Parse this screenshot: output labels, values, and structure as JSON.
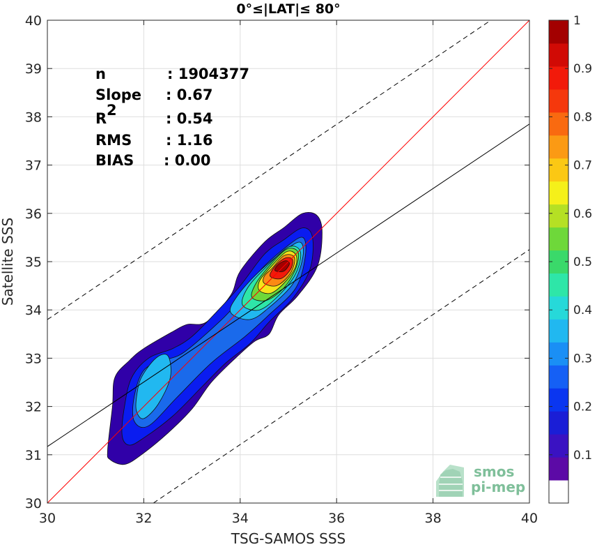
{
  "chart_data": {
    "type": "heatmap",
    "title": "0°≤|LAT|≤ 80°",
    "xlabel": "TSG-SAMOS SSS",
    "ylabel": "Satellite SSS",
    "xlim": [
      30,
      40
    ],
    "ylim": [
      30,
      40
    ],
    "xticks": [
      "30",
      "32",
      "34",
      "36",
      "38",
      "40"
    ],
    "yticks": [
      "30",
      "31",
      "32",
      "33",
      "34",
      "35",
      "36",
      "37",
      "38",
      "39",
      "40"
    ],
    "grid": true,
    "stats": [
      {
        "label": "n",
        "value": ": 1904377"
      },
      {
        "label": "Slope",
        "value": ": 0.67"
      },
      {
        "label": "R",
        "sup": "2",
        "value": ": 0.54"
      },
      {
        "label": "RMS",
        "value": ": 1.16"
      },
      {
        "label": "BIAS",
        "value": ": 0.00"
      }
    ],
    "lines": [
      {
        "name": "identity",
        "color": "#ff0000",
        "style": "solid",
        "points": [
          [
            30,
            30
          ],
          [
            40,
            40
          ]
        ]
      },
      {
        "name": "fit",
        "color": "#000000",
        "style": "solid",
        "points": [
          [
            30,
            31.17
          ],
          [
            40,
            37.85
          ]
        ]
      },
      {
        "name": "upper-bound",
        "color": "#000000",
        "style": "dashed",
        "points": [
          [
            30,
            33.8
          ],
          [
            39.2,
            40
          ]
        ]
      },
      {
        "name": "lower-bound",
        "color": "#000000",
        "style": "dashed",
        "points": [
          [
            32.2,
            30
          ],
          [
            40,
            35.25
          ]
        ]
      }
    ],
    "density_contours": [
      {
        "level": 0.05,
        "color": "#3000a8",
        "points": [
          [
            31.25,
            31.1
          ],
          [
            31.3,
            30.9
          ],
          [
            31.6,
            30.8
          ],
          [
            31.95,
            31.0
          ],
          [
            32.5,
            31.45
          ],
          [
            33.0,
            31.95
          ],
          [
            33.4,
            32.5
          ],
          [
            33.9,
            33.0
          ],
          [
            34.3,
            33.35
          ],
          [
            34.6,
            33.5
          ],
          [
            34.8,
            33.9
          ],
          [
            35.2,
            34.3
          ],
          [
            35.6,
            34.9
          ],
          [
            35.7,
            35.6
          ],
          [
            35.6,
            35.95
          ],
          [
            35.3,
            36.0
          ],
          [
            34.9,
            35.7
          ],
          [
            34.5,
            35.4
          ],
          [
            34.0,
            34.8
          ],
          [
            33.8,
            34.3
          ],
          [
            33.3,
            33.75
          ],
          [
            32.9,
            33.7
          ],
          [
            32.6,
            33.55
          ],
          [
            32.0,
            33.2
          ],
          [
            31.7,
            32.95
          ],
          [
            31.4,
            32.6
          ],
          [
            31.35,
            32.0
          ]
        ]
      },
      {
        "level": 0.15,
        "color": "#0a1cf0",
        "points": [
          [
            31.55,
            31.4
          ],
          [
            31.7,
            31.2
          ],
          [
            32.0,
            31.35
          ],
          [
            32.6,
            31.8
          ],
          [
            33.2,
            32.4
          ],
          [
            33.7,
            32.9
          ],
          [
            34.2,
            33.3
          ],
          [
            34.6,
            33.75
          ],
          [
            35.1,
            34.25
          ],
          [
            35.45,
            34.85
          ],
          [
            35.5,
            35.5
          ],
          [
            35.3,
            35.7
          ],
          [
            34.9,
            35.45
          ],
          [
            34.5,
            35.15
          ],
          [
            34.0,
            34.5
          ],
          [
            33.5,
            33.95
          ],
          [
            33.0,
            33.45
          ],
          [
            32.6,
            33.2
          ],
          [
            32.1,
            33.0
          ],
          [
            31.75,
            32.6
          ],
          [
            31.6,
            32.0
          ]
        ]
      },
      {
        "level": 0.25,
        "color": "#1a6aeb",
        "points": [
          [
            31.8,
            31.7
          ],
          [
            32.1,
            31.6
          ],
          [
            32.7,
            32.2
          ],
          [
            33.4,
            32.9
          ],
          [
            34.1,
            33.45
          ],
          [
            34.6,
            33.9
          ],
          [
            35.15,
            34.45
          ],
          [
            35.35,
            35.1
          ],
          [
            35.3,
            35.5
          ],
          [
            34.95,
            35.3
          ],
          [
            34.4,
            34.8
          ],
          [
            33.9,
            34.1
          ],
          [
            33.4,
            33.6
          ],
          [
            32.8,
            33.1
          ],
          [
            32.4,
            32.95
          ],
          [
            32.0,
            32.75
          ],
          [
            31.8,
            32.2
          ]
        ]
      },
      {
        "level": 0.35,
        "color": "#21b8f0",
        "points": [
          [
            31.85,
            31.9
          ],
          [
            32.0,
            31.75
          ],
          [
            32.3,
            32.05
          ],
          [
            32.55,
            32.6
          ],
          [
            32.5,
            33.05
          ],
          [
            32.25,
            33.0
          ],
          [
            31.95,
            32.6
          ],
          [
            31.85,
            32.2
          ]
        ]
      },
      {
        "level": 0.35,
        "color": "#21b8f0",
        "points": [
          [
            33.8,
            33.95
          ],
          [
            34.2,
            33.8
          ],
          [
            34.6,
            34.05
          ],
          [
            35.1,
            34.55
          ],
          [
            35.3,
            35.1
          ],
          [
            35.25,
            35.4
          ],
          [
            34.95,
            35.25
          ],
          [
            34.4,
            34.8
          ],
          [
            33.95,
            34.3
          ]
        ]
      },
      {
        "level": 0.45,
        "color": "#2ee6a8",
        "points": [
          [
            34.05,
            34.1
          ],
          [
            34.4,
            34.0
          ],
          [
            34.8,
            34.3
          ],
          [
            35.15,
            34.75
          ],
          [
            35.25,
            35.2
          ],
          [
            35.0,
            35.3
          ],
          [
            34.5,
            34.85
          ],
          [
            34.15,
            34.45
          ]
        ]
      },
      {
        "level": 0.55,
        "color": "#6ed83a",
        "points": [
          [
            34.25,
            34.25
          ],
          [
            34.55,
            34.2
          ],
          [
            34.9,
            34.45
          ],
          [
            35.15,
            34.85
          ],
          [
            35.2,
            35.2
          ],
          [
            34.95,
            35.25
          ],
          [
            34.55,
            34.85
          ],
          [
            34.3,
            34.5
          ]
        ]
      },
      {
        "level": 0.65,
        "color": "#f5e31a",
        "points": [
          [
            34.4,
            34.4
          ],
          [
            34.65,
            34.35
          ],
          [
            34.95,
            34.6
          ],
          [
            35.15,
            34.9
          ],
          [
            35.15,
            35.15
          ],
          [
            34.95,
            35.2
          ],
          [
            34.6,
            34.85
          ],
          [
            34.4,
            34.6
          ]
        ]
      },
      {
        "level": 0.75,
        "color": "#fb8a14",
        "points": [
          [
            34.5,
            34.55
          ],
          [
            34.75,
            34.5
          ],
          [
            35.0,
            34.7
          ],
          [
            35.12,
            34.95
          ],
          [
            35.1,
            35.12
          ],
          [
            34.9,
            35.12
          ],
          [
            34.65,
            34.85
          ],
          [
            34.5,
            34.7
          ]
        ]
      },
      {
        "level": 0.85,
        "color": "#f21a0a",
        "points": [
          [
            34.62,
            34.7
          ],
          [
            34.85,
            34.65
          ],
          [
            35.05,
            34.85
          ],
          [
            35.08,
            35.05
          ],
          [
            34.92,
            35.07
          ],
          [
            34.72,
            34.9
          ]
        ]
      },
      {
        "level": 0.95,
        "color": "#a30000",
        "points": [
          [
            34.72,
            34.82
          ],
          [
            34.9,
            34.8
          ],
          [
            35.02,
            34.95
          ],
          [
            34.95,
            35.02
          ],
          [
            34.8,
            34.95
          ]
        ]
      }
    ],
    "colorbar": {
      "range": [
        0,
        1
      ],
      "ticks": [
        "0.1",
        "0.2",
        "0.3",
        "0.4",
        "0.5",
        "0.6",
        "0.7",
        "0.8",
        "0.9",
        "1"
      ],
      "tick_values": [
        0.1,
        0.2,
        0.3,
        0.4,
        0.5,
        0.6,
        0.7,
        0.8,
        0.9,
        1.0
      ],
      "colors": [
        "#ffffff",
        "#5c0aa6",
        "#3a12c2",
        "#1a1ed6",
        "#0a36f0",
        "#1560f5",
        "#1a8ff5",
        "#21b8f0",
        "#26d9d9",
        "#2ee6a8",
        "#3ad96a",
        "#6ed83a",
        "#b5e024",
        "#f5f01a",
        "#fbc814",
        "#fb9a14",
        "#f96a10",
        "#f5380c",
        "#f21a0a",
        "#d10a05",
        "#a30000"
      ]
    }
  },
  "logo": {
    "line1": "smos",
    "line2": "pi-mep"
  }
}
